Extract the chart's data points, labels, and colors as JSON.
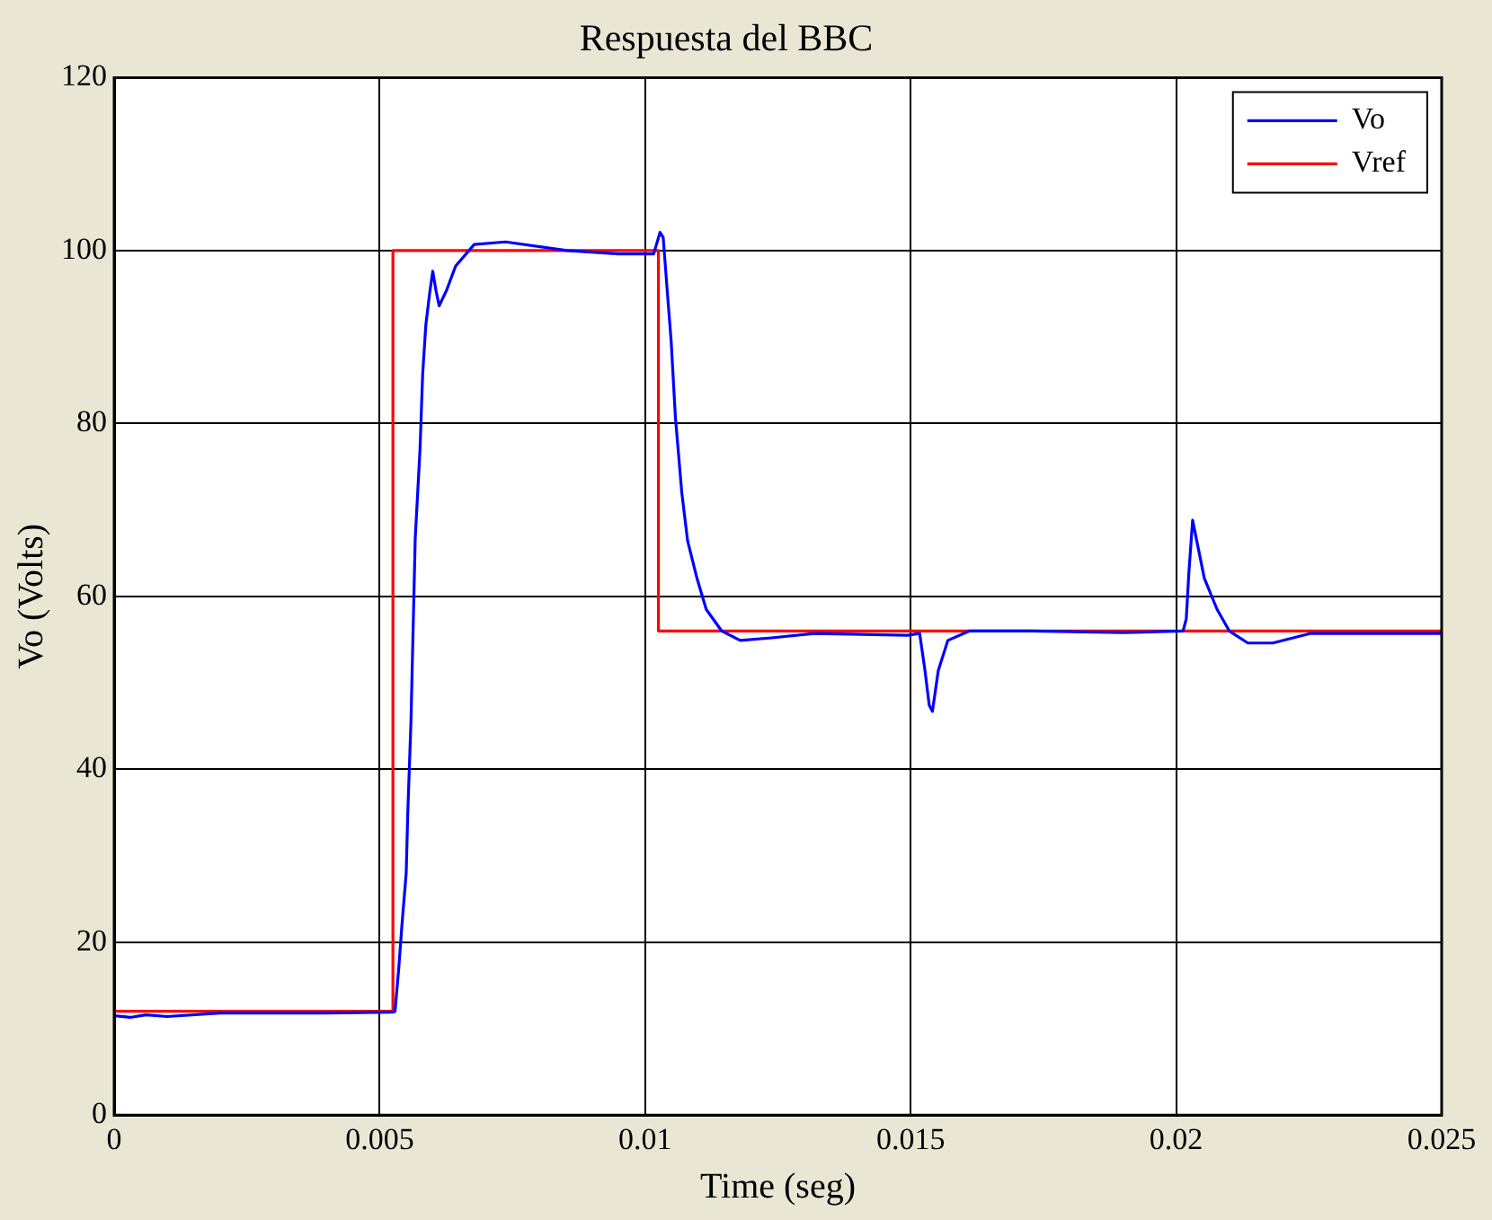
{
  "chart_data": {
    "type": "line",
    "title": "Respuesta del BBC",
    "xlabel": "Time (seg)",
    "ylabel": "Vo (Volts)",
    "xlim": [
      0,
      0.025
    ],
    "xticks": [
      0,
      0.005,
      0.01,
      0.015,
      0.02,
      0.025
    ],
    "ylim": [
      0,
      120
    ],
    "yticks": [
      0,
      20,
      40,
      60,
      80,
      100,
      120
    ],
    "grid": true,
    "legend": "top right",
    "marker": "none",
    "line_style": "solid",
    "series": [
      {
        "name": "Vo",
        "color": "#0000ff",
        "x": [
          0,
          0.0003,
          0.0006,
          0.001,
          0.002,
          0.004,
          0.00525,
          0.00529,
          0.00536,
          0.00542,
          0.0055,
          0.00553,
          0.00559,
          0.00567,
          0.00576,
          0.00581,
          0.00587,
          0.00594,
          0.006,
          0.00606,
          0.00612,
          0.00626,
          0.00643,
          0.00678,
          0.00737,
          0.00853,
          0.0095,
          0.01016,
          0.01028,
          0.01034,
          0.01042,
          0.01049,
          0.01057,
          0.01069,
          0.0108,
          0.01098,
          0.01115,
          0.01144,
          0.01179,
          0.01238,
          0.01319,
          0.01494,
          0.01517,
          0.01527,
          0.01535,
          0.01541,
          0.01552,
          0.0157,
          0.01611,
          0.01727,
          0.019,
          0.02013,
          0.02019,
          0.02024,
          0.02031,
          0.02053,
          0.02077,
          0.021,
          0.02135,
          0.02182,
          0.02252,
          0.025
        ],
        "values": [
          11.5,
          11.3,
          11.6,
          11.4,
          11.8,
          11.8,
          11.9,
          12,
          17,
          22,
          28,
          35,
          45.6,
          66.7,
          77,
          85.7,
          91.4,
          95,
          97.6,
          95.4,
          93.6,
          95.4,
          98.2,
          100.7,
          101,
          100,
          99.6,
          99.6,
          102.1,
          101.5,
          95,
          89.5,
          80.7,
          72,
          66.4,
          62,
          58.5,
          56,
          54.9,
          55.2,
          55.7,
          55.5,
          55.7,
          51.4,
          47.4,
          46.7,
          51.4,
          54.9,
          56,
          56,
          55.8,
          56,
          57.4,
          62.8,
          68.8,
          62.1,
          58.5,
          56,
          54.6,
          54.6,
          55.7,
          55.7
        ]
      },
      {
        "name": "Vref",
        "color": "#ff0000",
        "x": [
          0,
          0.00525,
          0.00525,
          0.01025,
          0.01025,
          0.025
        ],
        "values": [
          12,
          12,
          100,
          100,
          56,
          56
        ]
      }
    ]
  }
}
